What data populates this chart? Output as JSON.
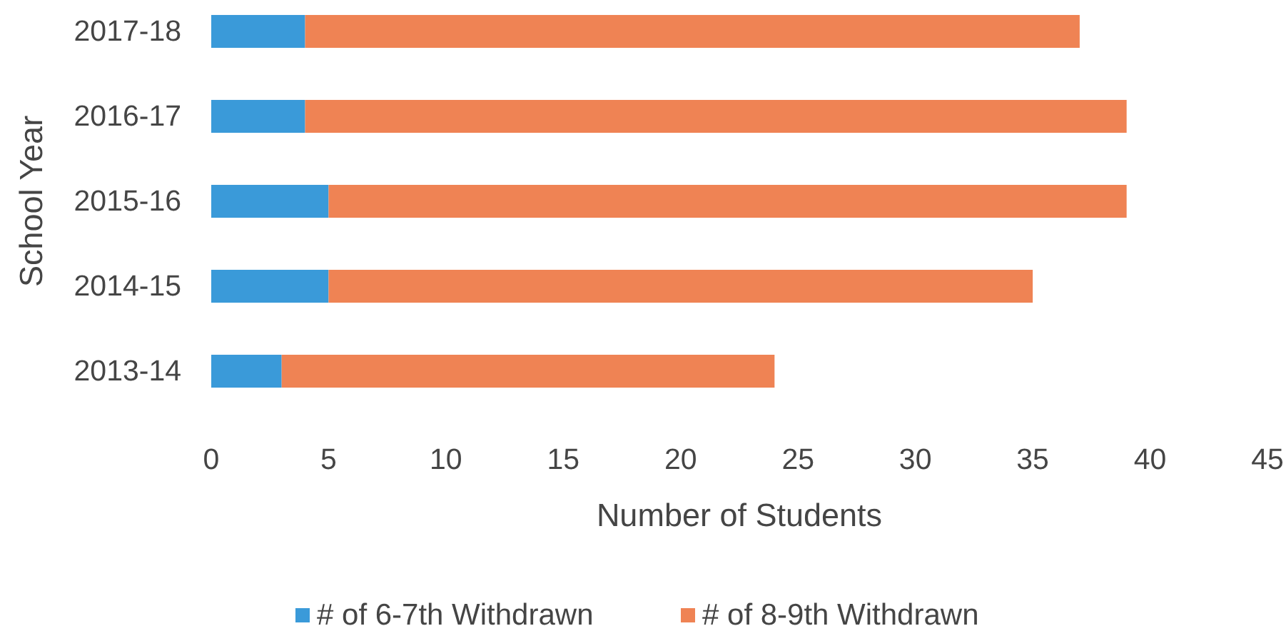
{
  "chart_data": {
    "type": "bar",
    "orientation": "horizontal",
    "stacked": true,
    "categories": [
      "2017-18",
      "2016-17",
      "2015-16",
      "2014-15",
      "2013-14"
    ],
    "series": [
      {
        "name": "# of 6-7th Withdrawn",
        "color": "#3a9ad9",
        "values": [
          4,
          4,
          5,
          5,
          3
        ]
      },
      {
        "name": "# of 8-9th Withdrawn",
        "color": "#ef8354",
        "values": [
          33,
          35,
          34,
          30,
          21
        ]
      }
    ],
    "xlim": [
      0,
      45
    ],
    "xticks": [
      0,
      5,
      10,
      15,
      20,
      25,
      30,
      35,
      40,
      45
    ],
    "xlabel": "Number of Students",
    "ylabel": "School Year",
    "legend": "bottom"
  }
}
